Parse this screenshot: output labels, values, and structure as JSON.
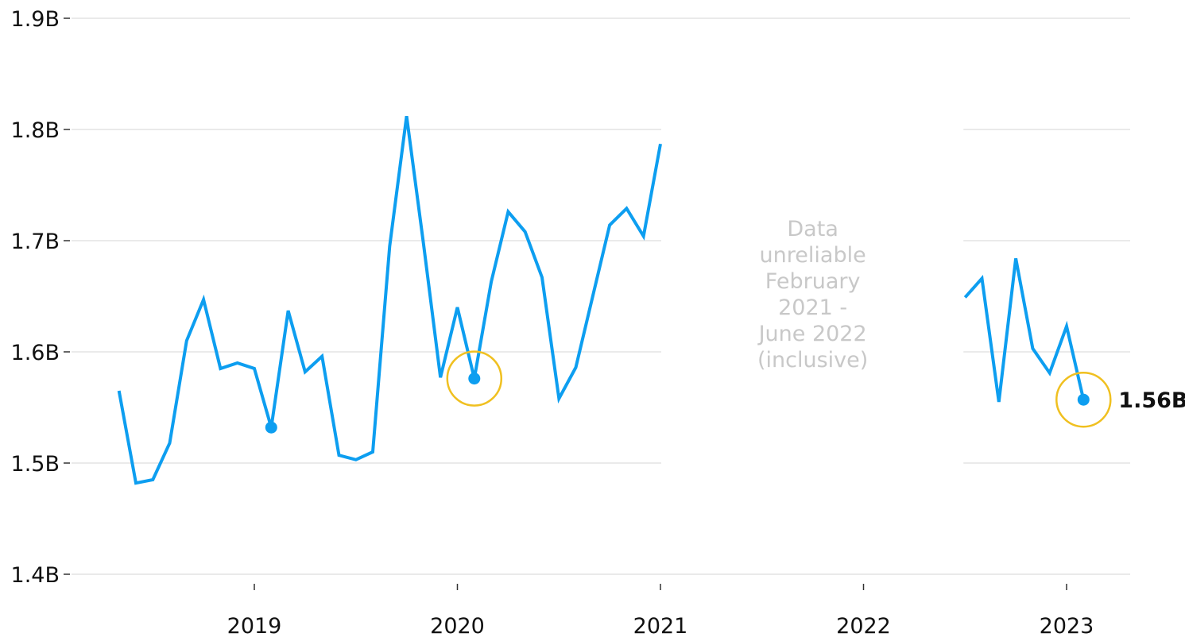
{
  "chart_data": {
    "type": "line",
    "title": "",
    "xlabel": "",
    "ylabel": "",
    "ylim": [
      1.4,
      1.9
    ],
    "y_ticks": [
      {
        "value": 1.4,
        "label": "1.4B"
      },
      {
        "value": 1.5,
        "label": "1.5B"
      },
      {
        "value": 1.6,
        "label": "1.6B"
      },
      {
        "value": 1.7,
        "label": "1.7B"
      },
      {
        "value": 1.8,
        "label": "1.8B"
      },
      {
        "value": 1.9,
        "label": "1.9B"
      }
    ],
    "x_ticks": [
      {
        "date": "2019-01",
        "label": "2019"
      },
      {
        "date": "2020-01",
        "label": "2020"
      },
      {
        "date": "2021-01",
        "label": "2021"
      },
      {
        "date": "2022-01",
        "label": "2022"
      },
      {
        "date": "2023-01",
        "label": "2023"
      }
    ],
    "grid": true,
    "gap": {
      "from": "2021-01",
      "to": "2022-07",
      "note_lines": [
        "Data",
        "unreliable",
        "February",
        "2021 -",
        "June 2022",
        "(inclusive)"
      ],
      "note_color": "#c8c8c8"
    },
    "series": [
      {
        "color": "#0d9ef0",
        "points": [
          {
            "x": "2018-05",
            "y": 1.565
          },
          {
            "x": "2018-06",
            "y": 1.482
          },
          {
            "x": "2018-07",
            "y": 1.485
          },
          {
            "x": "2018-08",
            "y": 1.518
          },
          {
            "x": "2018-09",
            "y": 1.61
          },
          {
            "x": "2018-10",
            "y": 1.647
          },
          {
            "x": "2018-11",
            "y": 1.585
          },
          {
            "x": "2018-12",
            "y": 1.59
          },
          {
            "x": "2019-01",
            "y": 1.585
          },
          {
            "x": "2019-02",
            "y": 1.532
          },
          {
            "x": "2019-03",
            "y": 1.637
          },
          {
            "x": "2019-04",
            "y": 1.582
          },
          {
            "x": "2019-05",
            "y": 1.596
          },
          {
            "x": "2019-06",
            "y": 1.507
          },
          {
            "x": "2019-07",
            "y": 1.503
          },
          {
            "x": "2019-08",
            "y": 1.51
          },
          {
            "x": "2019-09",
            "y": 1.695
          },
          {
            "x": "2019-10",
            "y": 1.812
          },
          {
            "x": "2019-11",
            "y": 1.697
          },
          {
            "x": "2019-12",
            "y": 1.577
          },
          {
            "x": "2020-01",
            "y": 1.64
          },
          {
            "x": "2020-02",
            "y": 1.576
          },
          {
            "x": "2020-03",
            "y": 1.663
          },
          {
            "x": "2020-04",
            "y": 1.726
          },
          {
            "x": "2020-05",
            "y": 1.708
          },
          {
            "x": "2020-06",
            "y": 1.667
          },
          {
            "x": "2020-07",
            "y": 1.558
          },
          {
            "x": "2020-08",
            "y": 1.586
          },
          {
            "x": "2020-09",
            "y": 1.65
          },
          {
            "x": "2020-10",
            "y": 1.714
          },
          {
            "x": "2020-11",
            "y": 1.729
          },
          {
            "x": "2020-12",
            "y": 1.704
          },
          {
            "x": "2021-01",
            "y": 1.787
          }
        ]
      },
      {
        "color": "#0d9ef0",
        "points": [
          {
            "x": "2022-07",
            "y": 1.649
          },
          {
            "x": "2022-08",
            "y": 1.666
          },
          {
            "x": "2022-09",
            "y": 1.555
          },
          {
            "x": "2022-10",
            "y": 1.684
          },
          {
            "x": "2022-11",
            "y": 1.603
          },
          {
            "x": "2022-12",
            "y": 1.581
          },
          {
            "x": "2023-01",
            "y": 1.623
          },
          {
            "x": "2023-02",
            "y": 1.557
          }
        ]
      }
    ],
    "markers": [
      {
        "x": "2019-02",
        "y": 1.532,
        "circled": false
      },
      {
        "x": "2020-02",
        "y": 1.576,
        "circled": true
      },
      {
        "x": "2023-02",
        "y": 1.557,
        "circled": true,
        "label": "1.56B"
      }
    ],
    "highlight_color": "#f0c020"
  }
}
